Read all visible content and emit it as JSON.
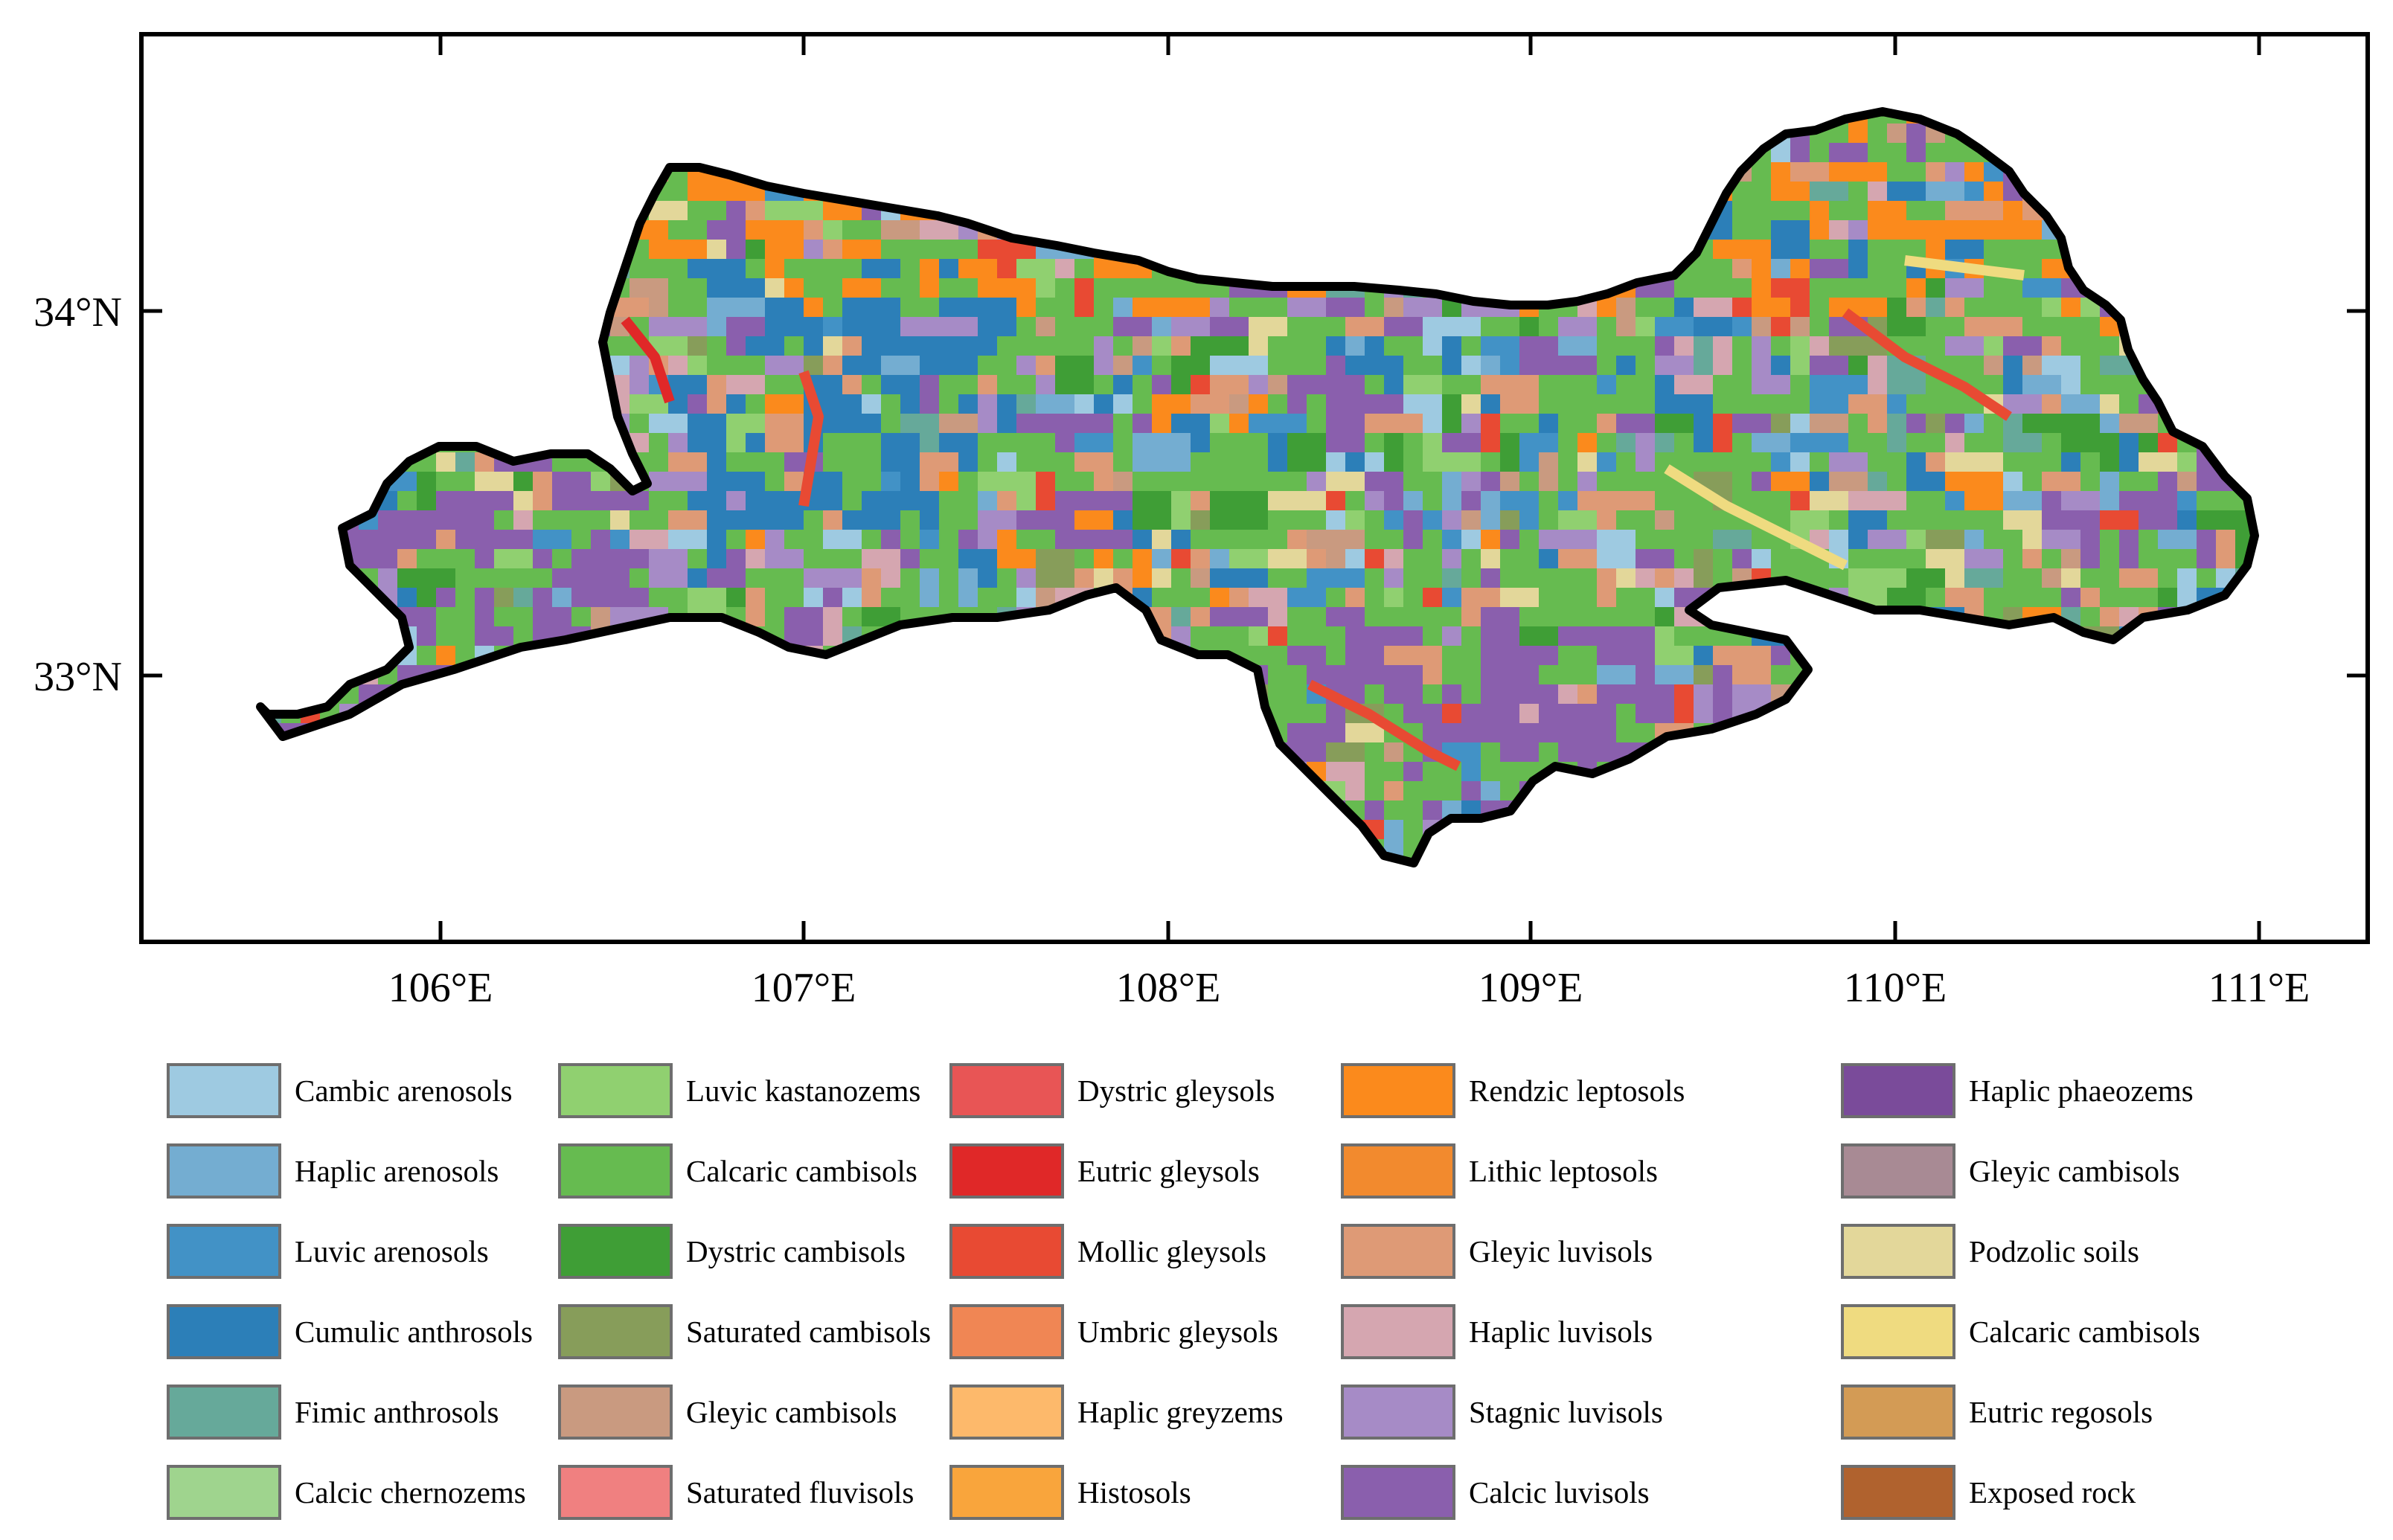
{
  "map": {
    "x_ticks": [
      "106°E",
      "107°E",
      "108°E",
      "109°E",
      "110°E",
      "111°E"
    ],
    "y_ticks": [
      "34°N",
      "33°N"
    ]
  },
  "legend": {
    "columns": [
      [
        {
          "label": "Cambic arenosols",
          "color": "#9ecae1"
        },
        {
          "label": "Haplic arenosols",
          "color": "#74add1"
        },
        {
          "label": "Luvic arenosols",
          "color": "#4292c6"
        },
        {
          "label": "Cumulic anthrosols",
          "color": "#2c7fb8"
        },
        {
          "label": "Fimic anthrosols",
          "color": "#66a99a"
        },
        {
          "label": "Calcic chernozems",
          "color": "#9fd48e"
        }
      ],
      [
        {
          "label": "Luvic kastanozems",
          "color": "#90d070"
        },
        {
          "label": "Calcaric cambisols",
          "color": "#66bb50"
        },
        {
          "label": "Dystric cambisols",
          "color": "#3f9e36"
        },
        {
          "label": "Saturated cambisols",
          "color": "#879d5a"
        },
        {
          "label": "Gleyic cambisols",
          "color": "#c99a80"
        },
        {
          "label": "Saturated fluvisols",
          "color": "#f08080"
        }
      ],
      [
        {
          "label": "Dystric gleysols",
          "color": "#e85555"
        },
        {
          "label": "Eutric gleysols",
          "color": "#e02828"
        },
        {
          "label": "Mollic gleysols",
          "color": "#e84a33"
        },
        {
          "label": "Umbric gleysols",
          "color": "#f08654"
        },
        {
          "label": "Haplic greyzems",
          "color": "#fdb96b"
        },
        {
          "label": "Histosols",
          "color": "#f9a53c"
        }
      ],
      [
        {
          "label": "Rendzic leptosols",
          "color": "#fb8a1c"
        },
        {
          "label": "Lithic leptosols",
          "color": "#f28a2e"
        },
        {
          "label": "Gleyic luvisols",
          "color": "#de9a76"
        },
        {
          "label": "Haplic luvisols",
          "color": "#d5a6b0"
        },
        {
          "label": "Stagnic luvisols",
          "color": "#a68bc6"
        },
        {
          "label": "Calcic luvisols",
          "color": "#8a5fad"
        }
      ],
      [
        {
          "label": "Haplic phaeozems",
          "color": "#7a4b9a"
        },
        {
          "label": "Gleyic cambisols",
          "color": "#a88a94"
        },
        {
          "label": "Podzolic soils",
          "color": "#e3d79a"
        },
        {
          "label": "Calcaric cambisols",
          "color": "#efdb80"
        },
        {
          "label": "Eutric regosols",
          "color": "#d39b55"
        },
        {
          "label": "Exposed rock",
          "color": "#b0622e"
        }
      ]
    ]
  }
}
